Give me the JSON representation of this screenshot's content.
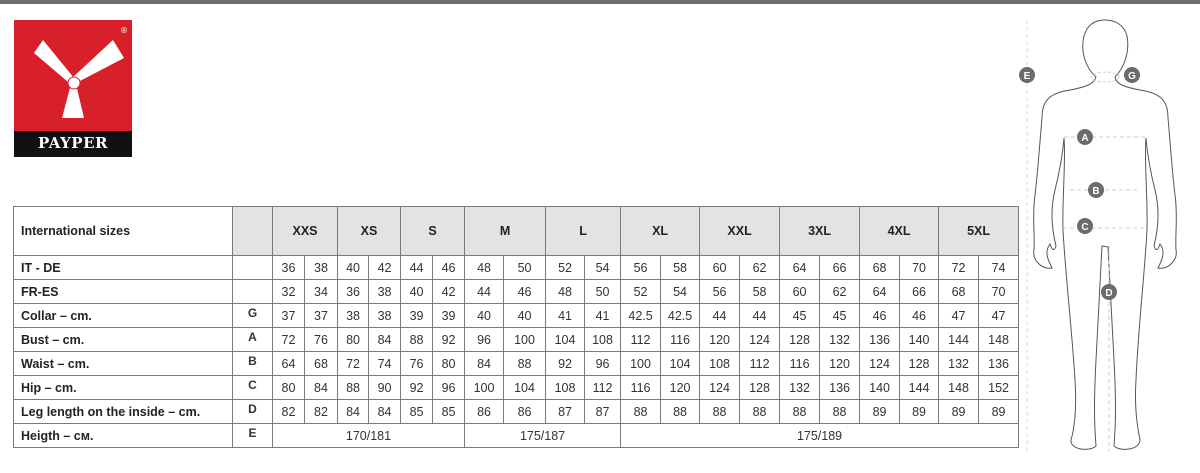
{
  "brand": {
    "name": "PAYPER",
    "registered_mark": "®",
    "colors": {
      "red": "#d8202a",
      "black": "#111111"
    }
  },
  "table": {
    "header_label": "International sizes",
    "sizes": [
      "XXS",
      "XS",
      "S",
      "M",
      "L",
      "XL",
      "XXL",
      "3XL",
      "4XL",
      "5XL"
    ],
    "rows": [
      {
        "label": "IT - DE",
        "letter": "",
        "values": [
          "36",
          "38",
          "40",
          "42",
          "44",
          "46",
          "48",
          "50",
          "52",
          "54",
          "56",
          "58",
          "60",
          "62",
          "64",
          "66",
          "68",
          "70",
          "72",
          "74"
        ]
      },
      {
        "label": "FR-ES",
        "letter": "",
        "values": [
          "32",
          "34",
          "36",
          "38",
          "40",
          "42",
          "44",
          "46",
          "48",
          "50",
          "52",
          "54",
          "56",
          "58",
          "60",
          "62",
          "64",
          "66",
          "68",
          "70"
        ]
      },
      {
        "label": "Collar – cm.",
        "letter": "G",
        "values": [
          "37",
          "37",
          "38",
          "38",
          "39",
          "39",
          "40",
          "40",
          "41",
          "41",
          "42.5",
          "42.5",
          "44",
          "44",
          "45",
          "45",
          "46",
          "46",
          "47",
          "47"
        ]
      },
      {
        "label": "Bust – cm.",
        "letter": "A",
        "values": [
          "72",
          "76",
          "80",
          "84",
          "88",
          "92",
          "96",
          "100",
          "104",
          "108",
          "112",
          "116",
          "120",
          "124",
          "128",
          "132",
          "136",
          "140",
          "144",
          "148"
        ]
      },
      {
        "label": "Waist – cm.",
        "letter": "B",
        "values": [
          "64",
          "68",
          "72",
          "74",
          "76",
          "80",
          "84",
          "88",
          "92",
          "96",
          "100",
          "104",
          "108",
          "112",
          "116",
          "120",
          "124",
          "128",
          "132",
          "136"
        ]
      },
      {
        "label": "Hip – cm.",
        "letter": "C",
        "values": [
          "80",
          "84",
          "88",
          "90",
          "92",
          "96",
          "100",
          "104",
          "108",
          "112",
          "116",
          "120",
          "124",
          "128",
          "132",
          "136",
          "140",
          "144",
          "148",
          "152"
        ]
      },
      {
        "label": "Leg length on the inside – cm.",
        "letter": "D",
        "values": [
          "82",
          "82",
          "84",
          "84",
          "85",
          "85",
          "86",
          "86",
          "87",
          "87",
          "88",
          "88",
          "88",
          "88",
          "88",
          "88",
          "89",
          "89",
          "89",
          "89"
        ]
      }
    ],
    "height_row": {
      "label": "Heigth – cм.",
      "letter": "E",
      "groups": [
        {
          "value": "170/181",
          "span_cols": 6
        },
        {
          "value": "175/187",
          "span_cols": 4
        },
        {
          "value": "175/189",
          "span_cols": 10
        }
      ]
    }
  },
  "figure": {
    "markers": [
      "E",
      "G",
      "A",
      "B",
      "C",
      "D"
    ]
  }
}
